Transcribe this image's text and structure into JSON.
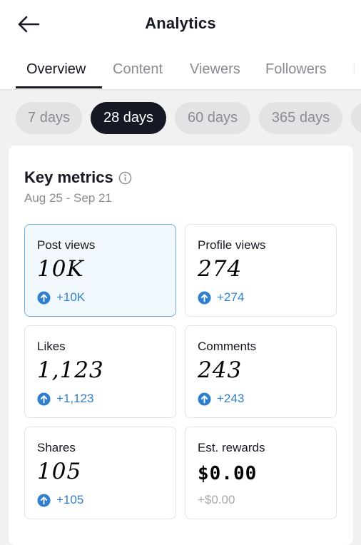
{
  "header": {
    "title": "Analytics"
  },
  "tabs": [
    {
      "label": "Overview"
    },
    {
      "label": "Content"
    },
    {
      "label": "Viewers"
    },
    {
      "label": "Followers"
    },
    {
      "label": "L"
    }
  ],
  "ranges": [
    {
      "label": "7 days"
    },
    {
      "label": "28 days"
    },
    {
      "label": "60 days"
    },
    {
      "label": "365 days"
    }
  ],
  "key_metrics": {
    "title": "Key metrics",
    "date_range": "Aug 25 - Sep 21",
    "tiles": [
      {
        "label": "Post views",
        "value": "10K",
        "delta": "+10K"
      },
      {
        "label": "Profile views",
        "value": "274",
        "delta": "+274"
      },
      {
        "label": "Likes",
        "value": "1,123",
        "delta": "+1,123"
      },
      {
        "label": "Comments",
        "value": "243",
        "delta": "+243"
      },
      {
        "label": "Shares",
        "value": "105",
        "delta": "+105"
      },
      {
        "label": "Est. rewards",
        "value": "$0.00",
        "delta": "+$0.00"
      }
    ]
  },
  "colors": {
    "accent_blue": "#2f7fd0",
    "selected_border": "#6fb0e3",
    "active_pill": "#161823"
  },
  "icons": {
    "back": "arrow-left-icon",
    "info": "info-circle-icon",
    "trend_up": "arrow-up-circle-icon"
  }
}
